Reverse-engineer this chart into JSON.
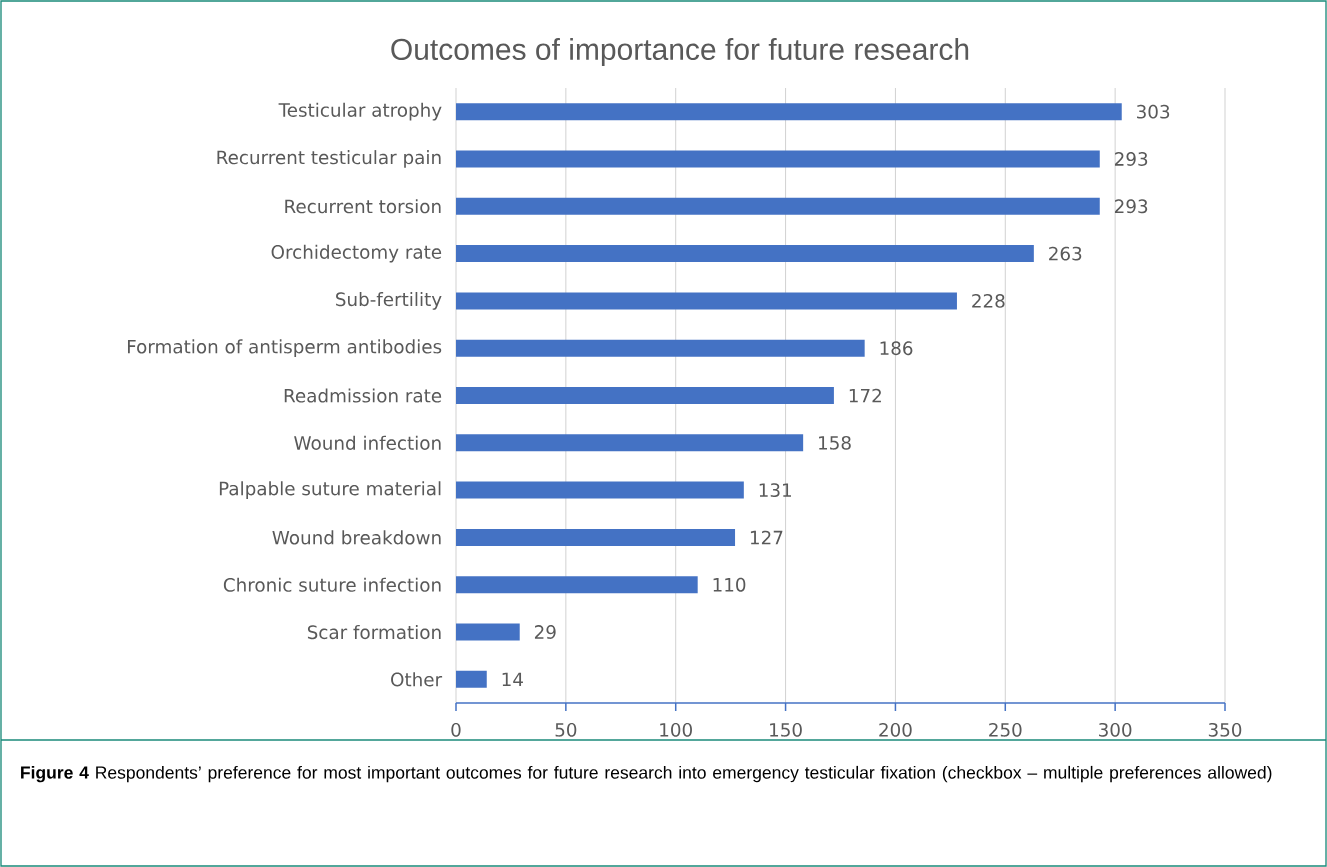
{
  "chart_data": {
    "type": "bar",
    "orientation": "horizontal",
    "title": "Outcomes of importance for future research",
    "categories": [
      "Testicular atrophy",
      "Recurrent testicular pain",
      "Recurrent torsion",
      "Orchidectomy rate",
      "Sub-fertility",
      "Formation of antisperm antibodies",
      "Readmission rate",
      "Wound infection",
      "Palpable suture material",
      "Wound breakdown",
      "Chronic suture infection",
      "Scar formation",
      "Other"
    ],
    "values": [
      303,
      293,
      293,
      263,
      228,
      186,
      172,
      158,
      131,
      127,
      110,
      29,
      14
    ],
    "color": "#4472c4",
    "xlim": [
      0,
      350
    ],
    "xticks": [
      0,
      50,
      100,
      150,
      200,
      250,
      300,
      350
    ],
    "grid": "x",
    "data_labels": true,
    "annotations": [
      "**Figure 4** Respondents’ preference for most important outcomes for future research into emergency testicular fixation (checkbox – multiple preferences allowed)"
    ]
  }
}
